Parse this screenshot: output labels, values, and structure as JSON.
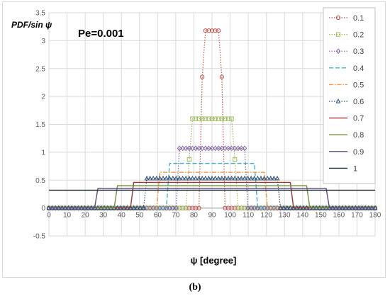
{
  "chart_data": {
    "type": "line",
    "ylabel": "PDF/sin ψ",
    "annotation": "Pe=0.001",
    "xlabel": "ψ  [degree]",
    "xlim": [
      0,
      180
    ],
    "ylim": [
      -0.5,
      3.5
    ],
    "x_ticks": [
      "0",
      "10",
      "20",
      "30",
      "40",
      "50",
      "60",
      "70",
      "80",
      "90",
      "100",
      "110",
      "120",
      "130",
      "140",
      "150",
      "160",
      "170",
      "180"
    ],
    "y_ticks": [
      "-0.5",
      "0",
      "0.5",
      "1",
      "1.5",
      "2",
      "2.5",
      "3",
      "3.5"
    ],
    "grid": true,
    "legend_position": "right",
    "series": [
      {
        "name": "0.1",
        "color": "#c0504d",
        "dash": "1.5,2",
        "marker": "circle",
        "width": 1.2,
        "x": [
          0,
          82.8,
          84.6,
          86.4,
          88.2,
          90,
          91.8,
          93.6,
          95.4,
          97.2,
          180
        ],
        "y": [
          0,
          0,
          2.35,
          3.18,
          3.18,
          3.18,
          3.18,
          3.18,
          2.35,
          0,
          0
        ]
      },
      {
        "name": "0.2",
        "color": "#9bbb59",
        "dash": "1.5,2",
        "marker": "square",
        "width": 1.2,
        "x": [
          0,
          75.6,
          77.4,
          79.2,
          100.8,
          102.6,
          104.4,
          180
        ],
        "y": [
          0,
          0,
          0.87,
          1.6,
          1.6,
          0.87,
          0,
          0
        ]
      },
      {
        "name": "0.3",
        "color": "#8064a2",
        "dash": "1.5,2",
        "marker": "diamond",
        "width": 1.2,
        "x": [
          0,
          70.2,
          72,
          108,
          109.8,
          180
        ],
        "y": [
          0,
          0,
          1.07,
          1.07,
          0,
          0
        ]
      },
      {
        "name": "0.4",
        "color": "#4bacc6",
        "dash": "6,3",
        "marker": "none",
        "width": 1.4,
        "x": [
          0,
          64.8,
          66.6,
          113.4,
          115.2,
          180
        ],
        "y": [
          0,
          0,
          0.8,
          0.8,
          0,
          0
        ]
      },
      {
        "name": "0.5",
        "color": "#f79646",
        "dash": "6,2,1.5,2",
        "marker": "none",
        "width": 1.4,
        "x": [
          0,
          59.4,
          61.2,
          118.8,
          120.6,
          180
        ],
        "y": [
          0,
          0,
          0.64,
          0.64,
          0,
          0
        ]
      },
      {
        "name": "0.6",
        "color": "#2c4d75",
        "dash": "1.5,2",
        "marker": "triangle",
        "width": 1.2,
        "x": [
          0,
          52.2,
          54,
          126,
          127.8,
          180
        ],
        "y": [
          0,
          0,
          0.53,
          0.53,
          0,
          0
        ]
      },
      {
        "name": "0.7",
        "color": "#953734",
        "dash": "",
        "marker": "none",
        "width": 1.4,
        "x": [
          0,
          45,
          46.8,
          133.2,
          135,
          180
        ],
        "y": [
          0,
          0,
          0.46,
          0.46,
          0,
          0
        ]
      },
      {
        "name": "0.8",
        "color": "#76923c",
        "dash": "",
        "marker": "none",
        "width": 1.4,
        "x": [
          0,
          36,
          37.8,
          142.2,
          144,
          180
        ],
        "y": [
          0,
          0,
          0.4,
          0.4,
          0,
          0
        ]
      },
      {
        "name": "0.9",
        "color": "#5f497a",
        "dash": "",
        "marker": "none",
        "width": 1.4,
        "x": [
          0,
          25.2,
          27,
          153,
          154.8,
          180
        ],
        "y": [
          0,
          0,
          0.35,
          0.35,
          0,
          0
        ]
      },
      {
        "name": "1",
        "color": "#1f2d3d",
        "dash": "",
        "marker": "none",
        "width": 1.4,
        "x": [
          0,
          180
        ],
        "y": [
          0.32,
          0.32
        ]
      }
    ]
  },
  "caption": "(b)"
}
